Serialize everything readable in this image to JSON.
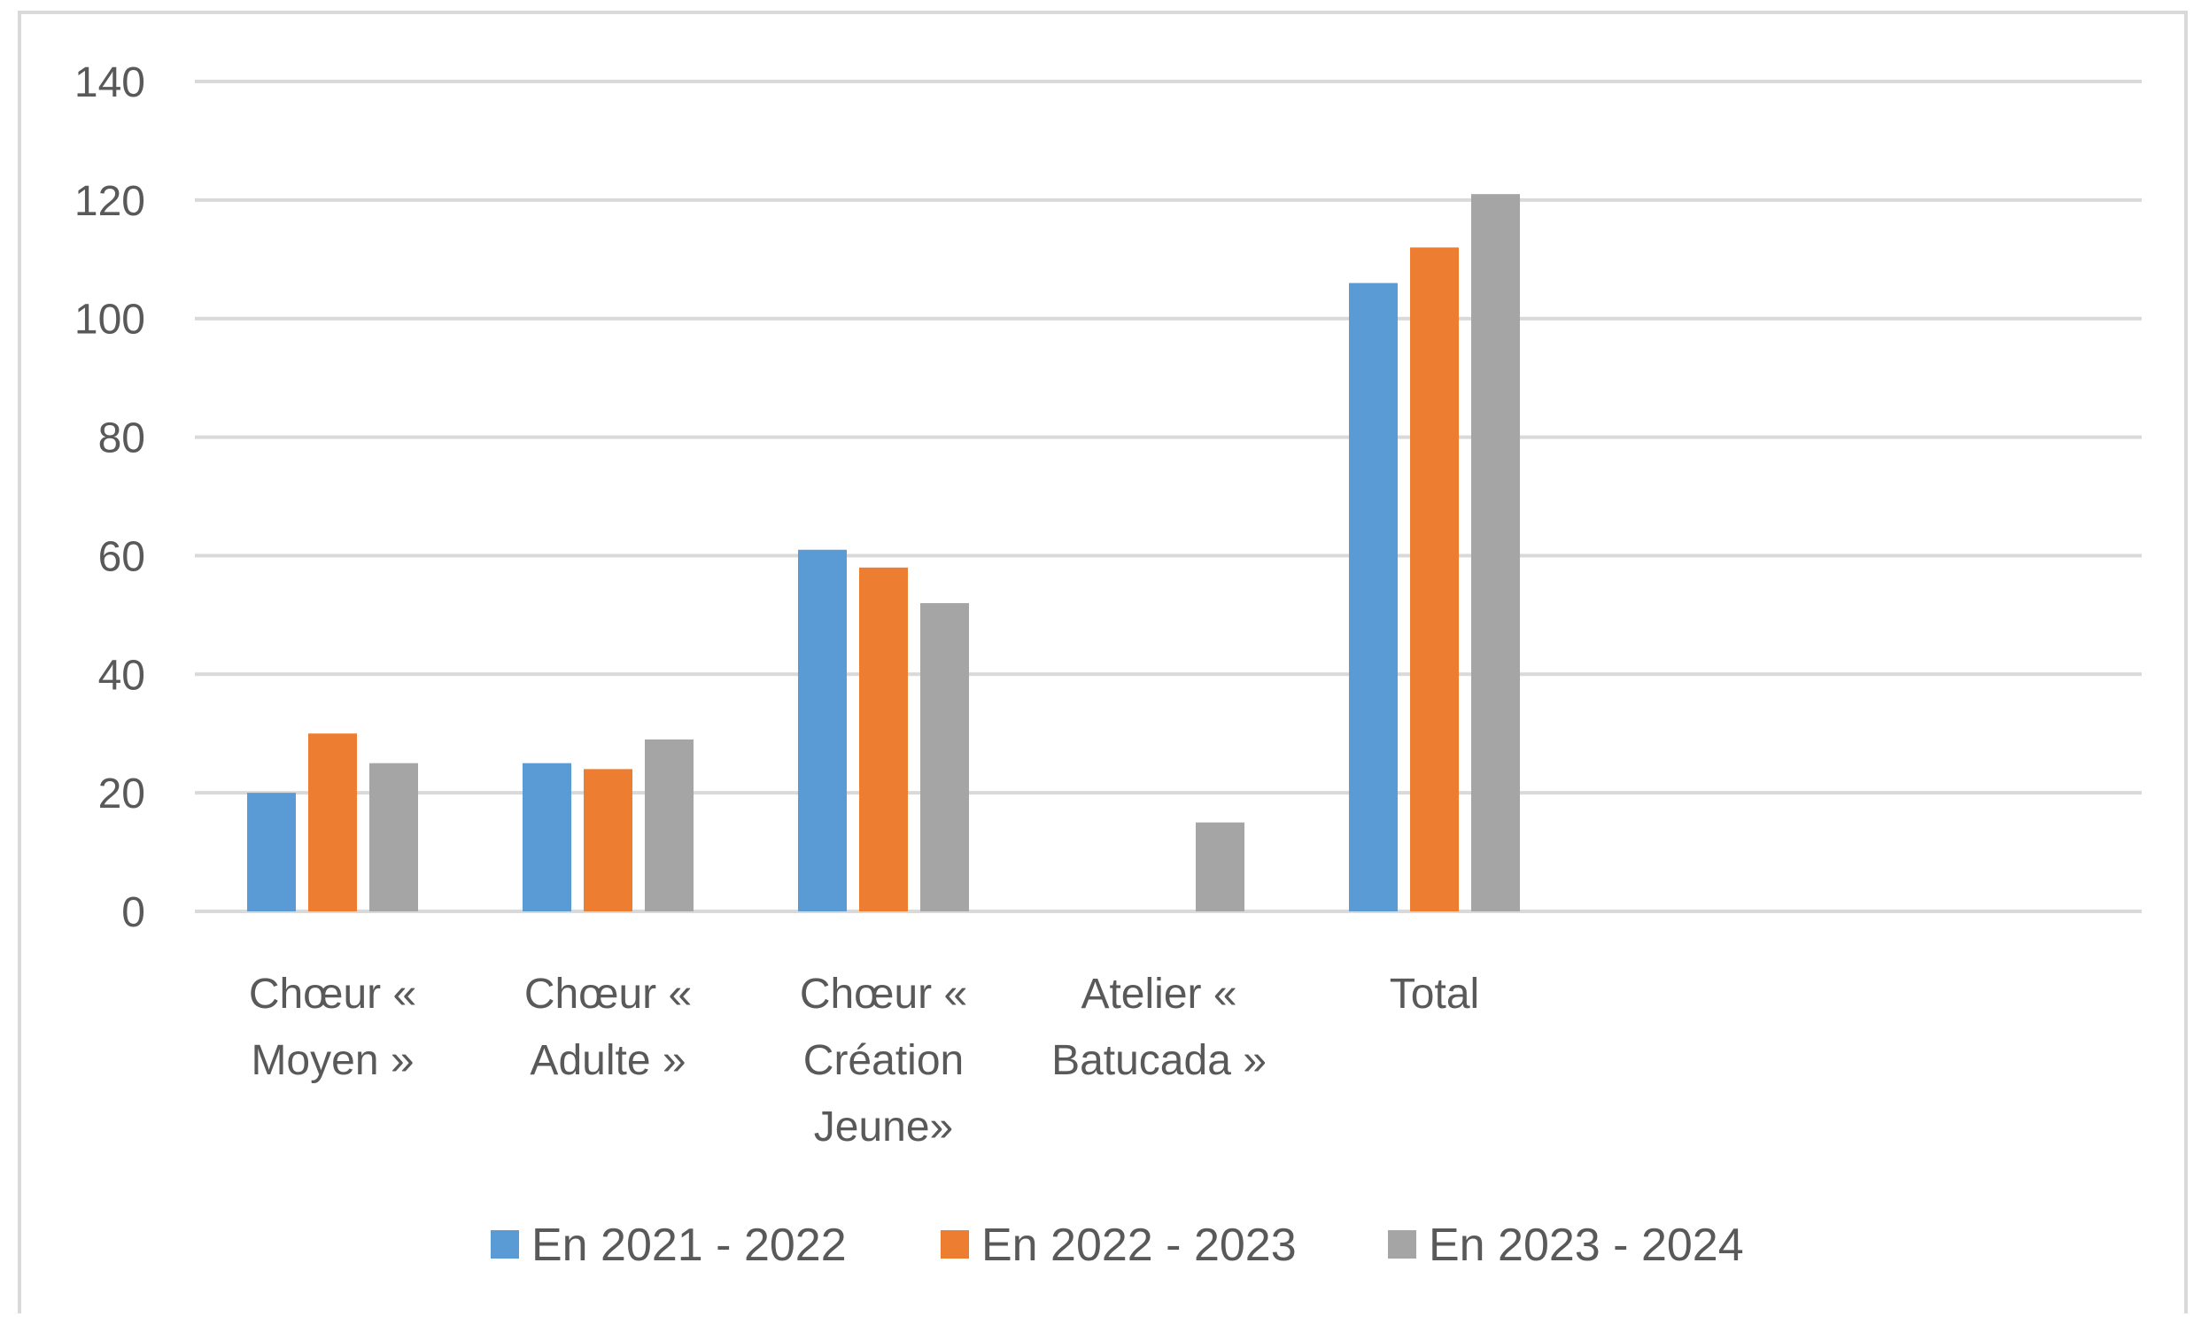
{
  "chart_data": {
    "type": "bar",
    "title": "",
    "xlabel": "",
    "ylabel": "",
    "categories": [
      [
        "Chœur «",
        "Moyen »"
      ],
      [
        "Chœur «",
        "Adulte »"
      ],
      [
        "Chœur «",
        "Création",
        "Jeune»"
      ],
      [
        "Atelier «",
        "Batucada »"
      ],
      [
        "Total"
      ]
    ],
    "series": [
      {
        "name": "En 2021 - 2022",
        "color": "#5b9bd5",
        "values": [
          20,
          25,
          61,
          null,
          106
        ]
      },
      {
        "name": "En 2022 - 2023",
        "color": "#ed7d31",
        "values": [
          30,
          24,
          58,
          null,
          112
        ]
      },
      {
        "name": "En 2023 - 2024",
        "color": "#a5a5a5",
        "values": [
          25,
          29,
          52,
          15,
          121
        ]
      }
    ],
    "ylim": [
      0,
      140
    ],
    "yticks": [
      0,
      20,
      40,
      60,
      80,
      100,
      120,
      140
    ],
    "grid": true,
    "legend_position": "bottom"
  }
}
